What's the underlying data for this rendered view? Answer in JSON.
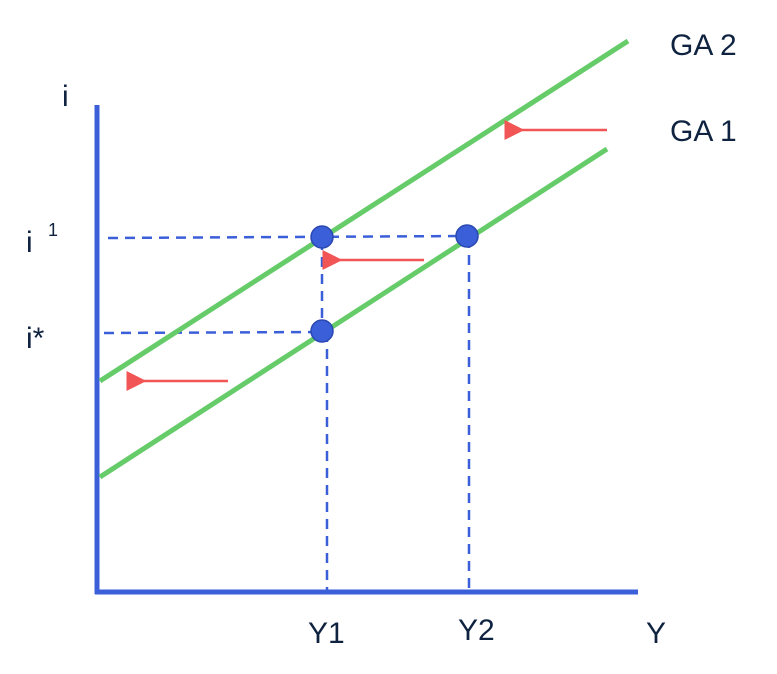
{
  "labels": {
    "y_axis": "i",
    "x_axis": "Y",
    "i1_base": "i",
    "i1_sup": "1",
    "istar": "i*",
    "y1": "Y1",
    "y2": "Y2",
    "ga2": "GA 2",
    "ga1": "GA 1"
  },
  "colors": {
    "axis": "#3b5fd9",
    "curve": "#66cc6a",
    "point": "#3b5fd9",
    "shift_arrow": "#f25555",
    "text": "#0f2340"
  }
}
